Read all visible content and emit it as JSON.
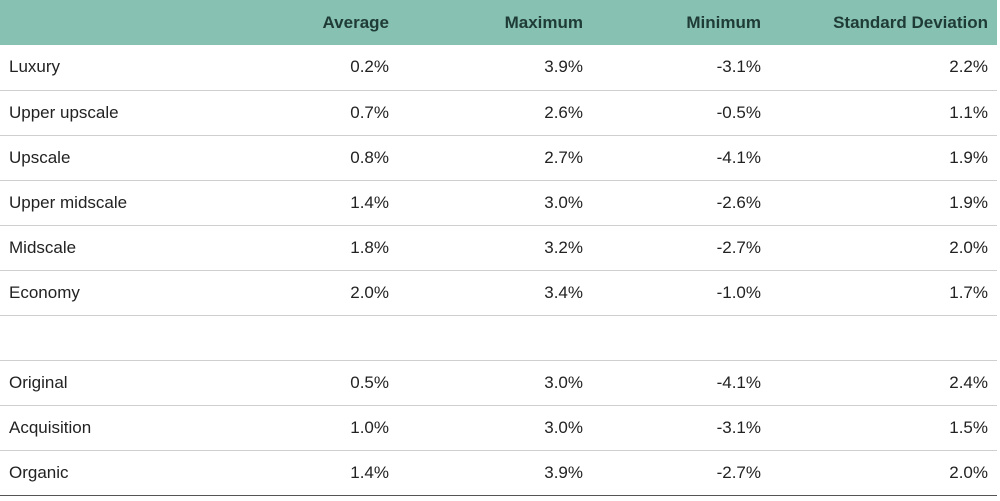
{
  "table": {
    "headers": [
      "",
      "Average",
      "Maximum",
      "Minimum",
      "Standard Deviation"
    ],
    "rows": [
      {
        "label": "Luxury",
        "average": "0.2%",
        "maximum": "3.9%",
        "minimum": "-3.1%",
        "std": "2.2%"
      },
      {
        "label": "Upper upscale",
        "average": "0.7%",
        "maximum": "2.6%",
        "minimum": "-0.5%",
        "std": "1.1%"
      },
      {
        "label": "Upscale",
        "average": "0.8%",
        "maximum": "2.7%",
        "minimum": "-4.1%",
        "std": "1.9%"
      },
      {
        "label": "Upper midscale",
        "average": "1.4%",
        "maximum": "3.0%",
        "minimum": "-2.6%",
        "std": "1.9%"
      },
      {
        "label": "Midscale",
        "average": "1.8%",
        "maximum": "3.2%",
        "minimum": "-2.7%",
        "std": "2.0%"
      },
      {
        "label": "Economy",
        "average": "2.0%",
        "maximum": "3.4%",
        "minimum": "-1.0%",
        "std": "1.7%"
      },
      {
        "label": "",
        "average": "",
        "maximum": "",
        "minimum": "",
        "std": ""
      },
      {
        "label": "Original",
        "average": "0.5%",
        "maximum": "3.0%",
        "minimum": "-4.1%",
        "std": "2.4%"
      },
      {
        "label": "Acquisition",
        "average": "1.0%",
        "maximum": "3.0%",
        "minimum": "-3.1%",
        "std": "1.5%"
      },
      {
        "label": "Organic",
        "average": "1.4%",
        "maximum": "3.9%",
        "minimum": "-2.7%",
        "std": "2.0%"
      }
    ]
  },
  "colors": {
    "header_background": "#86c1b1",
    "header_text": "#1f3b35",
    "row_divider": "#cfcfcf"
  }
}
